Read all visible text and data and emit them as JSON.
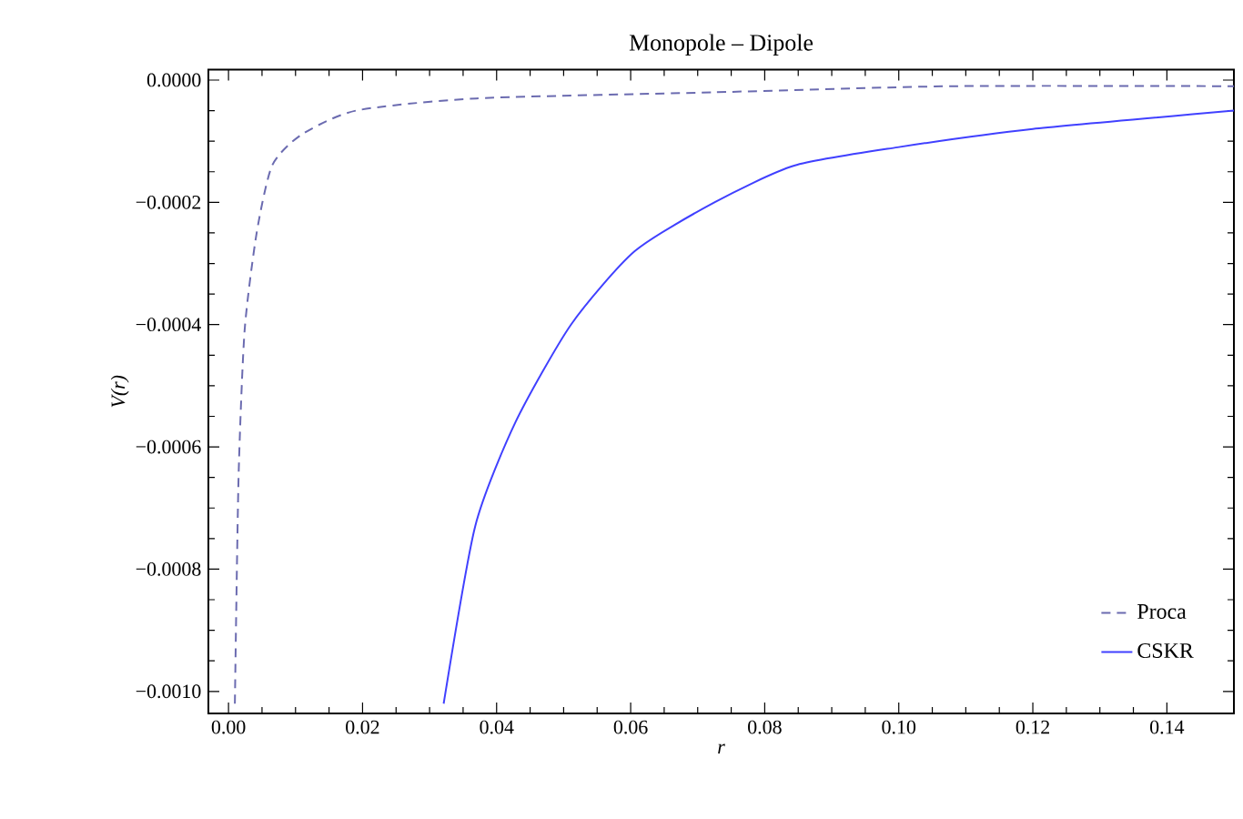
{
  "chart_data": {
    "type": "line",
    "title": "Monopole – Dipole",
    "xlabel": "r",
    "ylabel": "V(r)",
    "xlim": [
      -0.003,
      0.15
    ],
    "ylim": [
      -0.001036,
      1.7e-05
    ],
    "xticks": [
      {
        "value": 0,
        "label": "0.00"
      },
      {
        "value": 0.02,
        "label": "0.02"
      },
      {
        "value": 0.04,
        "label": "0.04"
      },
      {
        "value": 0.06,
        "label": "0.06"
      },
      {
        "value": 0.08,
        "label": "0.08"
      },
      {
        "value": 0.1,
        "label": "0.10"
      },
      {
        "value": 0.12,
        "label": "0.12"
      },
      {
        "value": 0.14,
        "label": "0.14"
      }
    ],
    "yticks": [
      {
        "value": 0,
        "label": "0.0000"
      },
      {
        "value": -0.0002,
        "label": "−0.0002"
      },
      {
        "value": -0.0004,
        "label": "−0.0004"
      },
      {
        "value": -0.0006,
        "label": "−0.0006"
      },
      {
        "value": -0.0008,
        "label": "−0.0008"
      },
      {
        "value": -0.001,
        "label": "−0.0010"
      }
    ],
    "grid": false,
    "legend": "bottom right",
    "marker": "none",
    "series": [
      {
        "name": "Proca",
        "color": "#6b6bb0",
        "line_style": "dashed",
        "x": [
          0.00095,
          0.0015,
          0.0024,
          0.0042,
          0.0065,
          0.0108,
          0.019,
          0.037,
          0.0725,
          0.108,
          0.15
        ],
        "values": [
          -0.00102,
          -0.00065,
          -0.00041,
          -0.00025,
          -0.00014,
          -9e-05,
          -5e-05,
          -3e-05,
          -2e-05,
          -1e-05,
          -1e-05
        ]
      },
      {
        "name": "CSKR",
        "color": "#4040ff",
        "line_style": "solid",
        "x": [
          0.0321,
          0.0368,
          0.0428,
          0.0511,
          0.0606,
          0.0725,
          0.0844,
          0.0998,
          0.12,
          0.15
        ],
        "values": [
          -0.00102,
          -0.00073,
          -0.00056,
          -0.0004,
          -0.00028,
          -0.0002,
          -0.00014,
          -0.00011,
          -8e-05,
          -5e-05
        ]
      }
    ]
  }
}
